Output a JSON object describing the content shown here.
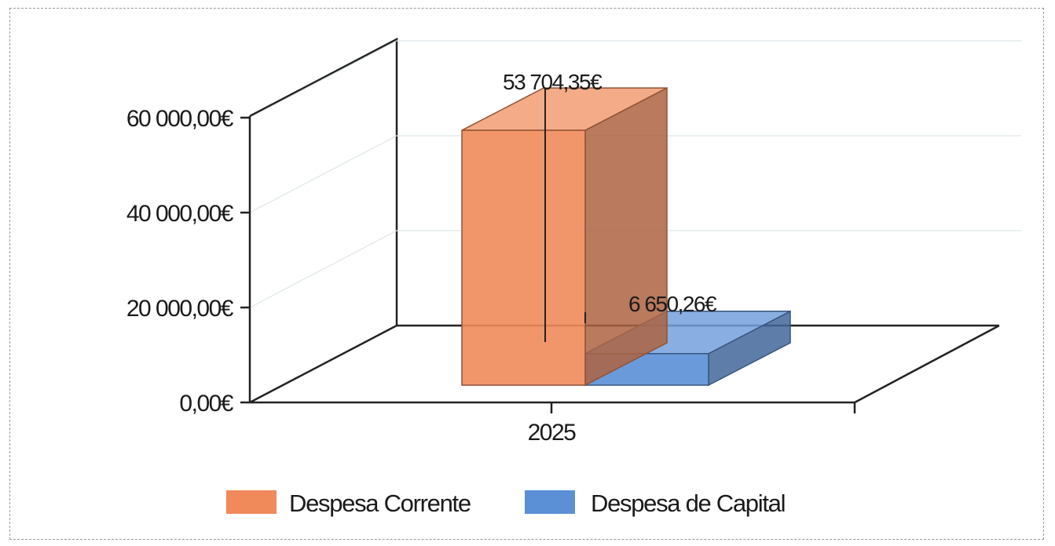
{
  "chart_data": {
    "type": "bar",
    "categories": [
      "2025"
    ],
    "series": [
      {
        "name": "Despesa Corrente",
        "values": [
          53704.35
        ],
        "color": "#f08a5a"
      },
      {
        "name": "Despesa de Capital",
        "values": [
          6650.26
        ],
        "color": "#5b8fd6"
      }
    ],
    "data_labels": [
      "53 704,35€",
      "6 650,26€"
    ],
    "y_ticks": [
      {
        "value": 0,
        "label": "0,00€"
      },
      {
        "value": 20000,
        "label": "20 000,00€"
      },
      {
        "value": 40000,
        "label": "40 000,00€"
      },
      {
        "value": 60000,
        "label": "60 000,00€"
      }
    ],
    "ylim": [
      0,
      60000
    ],
    "grid": true,
    "legend_position": "bottom",
    "style_3d": true
  }
}
